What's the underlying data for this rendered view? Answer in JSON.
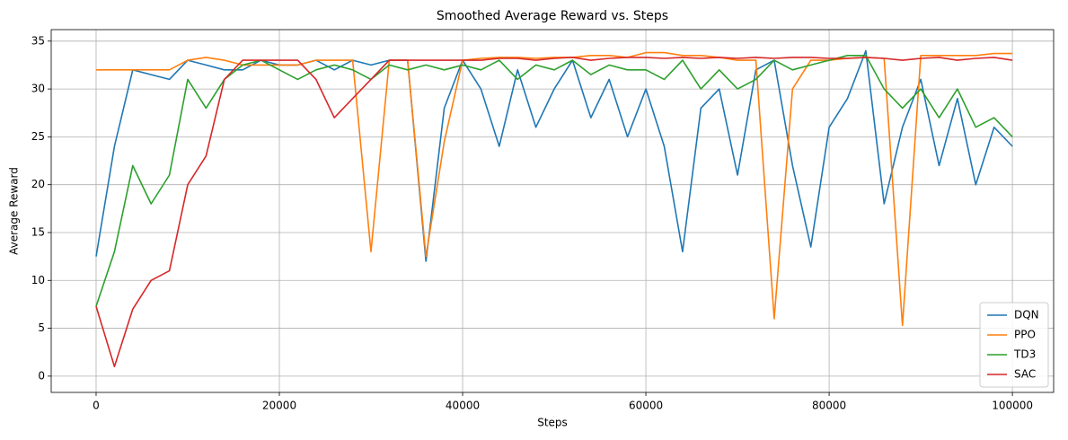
{
  "chart_data": {
    "type": "line",
    "title": "Smoothed Average Reward vs. Steps",
    "x_label": "Steps",
    "y_label": "Average Reward",
    "x": [
      0,
      2000,
      4000,
      6000,
      8000,
      10000,
      12000,
      14000,
      16000,
      18000,
      20000,
      22000,
      24000,
      26000,
      28000,
      30000,
      32000,
      34000,
      36000,
      38000,
      40000,
      42000,
      44000,
      46000,
      48000,
      50000,
      52000,
      54000,
      56000,
      58000,
      60000,
      62000,
      64000,
      66000,
      68000,
      70000,
      72000,
      74000,
      76000,
      78000,
      80000,
      82000,
      84000,
      86000,
      88000,
      90000,
      92000,
      94000,
      96000,
      98000,
      100000
    ],
    "series": [
      {
        "name": "DQN",
        "color": "#1f77b4",
        "values": [
          12.5,
          24,
          32,
          31.5,
          31,
          33,
          32.5,
          32,
          32,
          33,
          32.5,
          32.5,
          33,
          32,
          33,
          32.5,
          33,
          33,
          12,
          28,
          33,
          30,
          24,
          32,
          26,
          30,
          33,
          27,
          31,
          25,
          30,
          24,
          13,
          28,
          30,
          21,
          32,
          33,
          22,
          13.5,
          26,
          29,
          34,
          18,
          26,
          31,
          22,
          29,
          20,
          26,
          24
        ]
      },
      {
        "name": "PPO",
        "color": "#ff7f0e",
        "values": [
          32,
          32,
          32,
          32,
          32,
          33,
          33.3,
          33,
          32.5,
          32.5,
          32.5,
          32.5,
          33,
          33,
          33,
          13,
          33,
          33,
          12.5,
          24.5,
          33,
          33.2,
          33.3,
          33.3,
          33.2,
          33.3,
          33.3,
          33.5,
          33.5,
          33.3,
          33.8,
          33.8,
          33.5,
          33.5,
          33.3,
          33,
          33,
          6,
          30,
          33,
          33,
          33.2,
          33.3,
          33.2,
          5.3,
          33.5,
          33.5,
          33.5,
          33.5,
          33.7,
          33.7
        ]
      },
      {
        "name": "TD3",
        "color": "#2ca02c",
        "values": [
          7.3,
          13,
          22,
          18,
          21,
          31,
          28,
          31,
          32.5,
          33,
          32,
          31,
          32,
          32.5,
          32,
          31,
          32.5,
          32,
          32.5,
          32,
          32.5,
          32,
          33,
          31,
          32.5,
          32,
          33,
          31.5,
          32.5,
          32,
          32,
          31,
          33,
          30,
          32,
          30,
          31,
          33,
          32,
          32.5,
          33,
          33.5,
          33.5,
          30,
          28,
          30,
          27,
          30,
          26,
          27,
          25
        ]
      },
      {
        "name": "SAC",
        "color": "#d62728",
        "values": [
          7.3,
          1,
          7,
          10,
          11,
          20,
          23,
          31,
          33,
          33,
          33,
          33,
          31,
          27,
          29,
          31,
          33,
          33,
          33,
          33,
          33,
          33,
          33.2,
          33.2,
          33,
          33.2,
          33.3,
          33,
          33.2,
          33.3,
          33.3,
          33.2,
          33.3,
          33.2,
          33.3,
          33.2,
          33.3,
          33.2,
          33.3,
          33.3,
          33.2,
          33.2,
          33.3,
          33.2,
          33,
          33.2,
          33.3,
          33,
          33.2,
          33.3,
          33
        ]
      }
    ],
    "xlim": [
      -4900,
      104500
    ],
    "ylim": [
      -1.7,
      36.2
    ],
    "xticks": [
      0,
      20000,
      40000,
      60000,
      80000,
      100000
    ],
    "yticks": [
      0,
      5,
      10,
      15,
      20,
      25,
      30,
      35
    ],
    "grid": true,
    "legend": "lower right"
  }
}
